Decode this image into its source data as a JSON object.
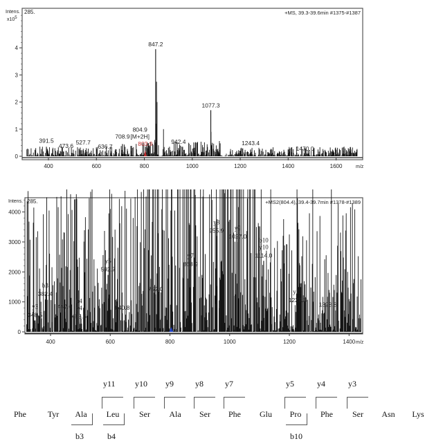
{
  "chart_data": [
    {
      "type": "bar",
      "title": "+MS, 39.3-39.6min #1375-#1387",
      "xlabel": "m/z",
      "ylabel": "Intens.",
      "y_scale_label": "x10^5",
      "corner_label": "285.",
      "xlim": [
        300,
        1700
      ],
      "ylim": [
        0,
        4.5
      ],
      "x_ticks": [
        400,
        600,
        800,
        1000,
        1200,
        1400,
        1600
      ],
      "y_ticks": [
        0,
        1,
        2,
        3,
        4
      ],
      "labeled_peaks": [
        {
          "mz": 391.5,
          "intensity": 0.35,
          "label": "391.5"
        },
        {
          "mz": 473.6,
          "intensity": 0.2,
          "label": "473.6"
        },
        {
          "mz": 527.7,
          "intensity": 0.28,
          "label": "527.7"
        },
        {
          "mz": 636.7,
          "intensity": 0.18,
          "label": "636.7"
        },
        {
          "mz": 708.9,
          "intensity": 0.45,
          "label": "708.9"
        },
        {
          "mz": 803.9,
          "intensity": 0.25,
          "label": "803.9",
          "color": "#c03030",
          "marker": true
        },
        {
          "mz": 804.9,
          "intensity": 0.35,
          "label": "804.9"
        },
        {
          "mz": 847.2,
          "intensity": 3.95,
          "label": "847.2"
        },
        {
          "mz": 942.4,
          "intensity": 0.3,
          "label": "942.4"
        },
        {
          "mz": 1077.3,
          "intensity": 1.7,
          "label": "1077.3"
        },
        {
          "mz": 1243.4,
          "intensity": 0.25,
          "label": "1243.4"
        },
        {
          "mz": 1470.0,
          "intensity": 0.05,
          "label": "1470.0"
        }
      ],
      "annotations": [
        {
          "text": "[M+2H]",
          "mz": 804.9
        }
      ],
      "unlabeled_peaks": [
        {
          "mz": 851,
          "intensity": 2.75
        },
        {
          "mz": 853,
          "intensity": 2.0
        },
        {
          "mz": 849,
          "intensity": 1.2
        },
        {
          "mz": 843,
          "intensity": 0.6
        },
        {
          "mz": 880,
          "intensity": 1.0
        },
        {
          "mz": 1078,
          "intensity": 0.9
        },
        {
          "mz": 347,
          "intensity": 0.3
        },
        {
          "mz": 375,
          "intensity": 0.35
        },
        {
          "mz": 533,
          "intensity": 0.32
        },
        {
          "mz": 720,
          "intensity": 0.35
        },
        {
          "mz": 820,
          "intensity": 0.4
        },
        {
          "mz": 835,
          "intensity": 0.45
        },
        {
          "mz": 905,
          "intensity": 0.35
        },
        {
          "mz": 960,
          "intensity": 0.35
        },
        {
          "mz": 1005,
          "intensity": 0.3
        },
        {
          "mz": 1100,
          "intensity": 0.4
        },
        {
          "mz": 1200,
          "intensity": 0.2
        },
        {
          "mz": 1590,
          "intensity": 0.05
        }
      ]
    },
    {
      "type": "bar",
      "title": "+MS2(804.4), 39.4-39.7min #1378-#1389",
      "xlabel": "m/z",
      "ylabel": "Intens.",
      "corner_label": "285.",
      "xlim": [
        315,
        1450
      ],
      "ylim": [
        0,
        4200
      ],
      "x_ticks": [
        400,
        600,
        800,
        1000,
        1200,
        1400
      ],
      "y_ticks": [
        0,
        1000,
        2000,
        3000,
        4000
      ],
      "labeled_peaks": [
        {
          "mz": 348.5,
          "intensity": 380,
          "label": "348.5",
          "ion": "y3"
        },
        {
          "mz": 382.4,
          "intensity": 1080,
          "label": "382.4",
          "ion": "b3"
        },
        {
          "mz": 447.6,
          "intensity": 660,
          "label": "447.6"
        },
        {
          "mz": 495.6,
          "intensity": 330,
          "label": "495.6",
          "ion": "b4\ny4"
        },
        {
          "mz": 592.7,
          "intensity": 1900,
          "label": "592.7",
          "ion": "y5"
        },
        {
          "mz": 640.8,
          "intensity": 620,
          "label": "640.8"
        },
        {
          "mz": 752.0,
          "intensity": 1250,
          "label": "752.0"
        },
        {
          "mz": 868.9,
          "intensity": 2080,
          "label": "868.9",
          "ion": "y7"
        },
        {
          "mz": 955.9,
          "intensity": 3200,
          "label": "955.9",
          "ion": "y8"
        },
        {
          "mz": 1027.0,
          "intensity": 3000,
          "label": "1027.0",
          "ion": "y9"
        },
        {
          "mz": 1114.0,
          "intensity": 2370,
          "label": "1114.0",
          "ion": "b10\ny10"
        },
        {
          "mz": 1227.3,
          "intensity": 880,
          "label": "1227.3",
          "ion": "y11"
        },
        {
          "mz": 1328.8,
          "intensity": 730,
          "label": "1328.8"
        }
      ],
      "precursor_marker": {
        "mz": 804.4,
        "color": "#2040c0"
      },
      "unlabeled_peaks": [
        {
          "mz": 720,
          "intensity": 1120
        },
        {
          "mz": 843,
          "intensity": 1820
        },
        {
          "mz": 869,
          "intensity": 1080
        },
        {
          "mz": 953,
          "intensity": 930
        },
        {
          "mz": 965,
          "intensity": 1050
        },
        {
          "mz": 1019,
          "intensity": 1250
        },
        {
          "mz": 1017,
          "intensity": 1200
        },
        {
          "mz": 1298,
          "intensity": 580
        },
        {
          "mz": 1296,
          "intensity": 450
        },
        {
          "mz": 1113,
          "intensity": 520
        },
        {
          "mz": 922,
          "intensity": 640
        },
        {
          "mz": 905,
          "intensity": 550
        },
        {
          "mz": 790,
          "intensity": 400
        },
        {
          "mz": 770,
          "intensity": 450
        },
        {
          "mz": 610,
          "intensity": 450
        },
        {
          "mz": 420,
          "intensity": 400
        },
        {
          "mz": 405,
          "intensity": 330
        },
        {
          "mz": 1260,
          "intensity": 380
        },
        {
          "mz": 1095,
          "intensity": 270
        },
        {
          "mz": 1140,
          "intensity": 260
        }
      ]
    }
  ],
  "sequence": {
    "residues": [
      "Phe",
      "Tyr",
      "Ala",
      "Leu",
      "Ser",
      "Ala",
      "Ser",
      "Phe",
      "Glu",
      "Pro",
      "Phe",
      "Ser",
      "Asn",
      "Lys"
    ],
    "y_ions": [
      {
        "label": "y11",
        "before_residue": 3
      },
      {
        "label": "y10",
        "before_residue": 4
      },
      {
        "label": "y9",
        "before_residue": 5
      },
      {
        "label": "y8",
        "before_residue": 6
      },
      {
        "label": "y7",
        "before_residue": 7
      },
      {
        "label": "y5",
        "before_residue": 9
      },
      {
        "label": "y4",
        "before_residue": 10
      },
      {
        "label": "y3",
        "before_residue": 11
      }
    ],
    "b_ions": [
      {
        "label": "b3",
        "after_residue": 2
      },
      {
        "label": "b4",
        "after_residue": 3
      },
      {
        "label": "b10",
        "after_residue": 9
      }
    ]
  }
}
